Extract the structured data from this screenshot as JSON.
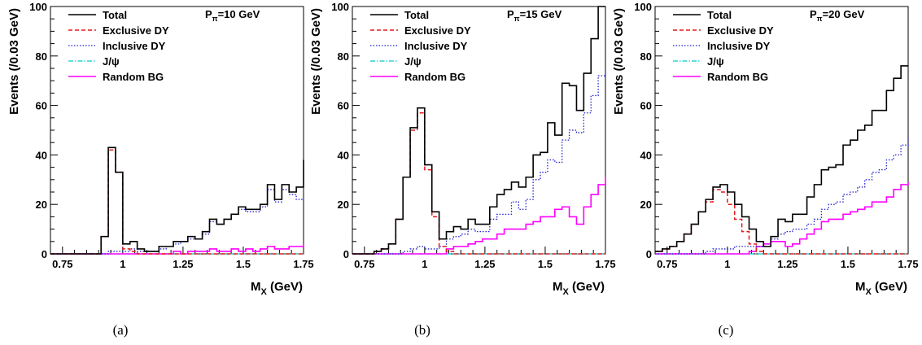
{
  "axis": {
    "ylabel": "Events (/0.03 GeV)",
    "xlabel_main": "M",
    "xlabel_sub": "X",
    "xlabel_unit": "(GeV)",
    "xticks": [
      "0.75",
      "1",
      "1.25",
      "1.5",
      "1.75"
    ],
    "yticks": [
      "0",
      "20",
      "40",
      "60",
      "80",
      "100"
    ]
  },
  "legend": {
    "entries": [
      {
        "key": "total",
        "label": "Total",
        "color": "#000000",
        "style": "solid"
      },
      {
        "key": "exclusive",
        "label": "Exclusive DY",
        "color": "#e41a1c",
        "style": "dashed"
      },
      {
        "key": "inclusive",
        "label": "Inclusive DY",
        "color": "#1f1fd0",
        "style": "dotted"
      },
      {
        "key": "jpsi",
        "label": "J/ψ",
        "color": "#00cccc",
        "style": "dashdot"
      },
      {
        "key": "random",
        "label": "Random BG",
        "color": "#ff00ff",
        "style": "solid"
      }
    ]
  },
  "chart_data": [
    {
      "type": "histogram",
      "caption": "(a)",
      "annotation": {
        "main": "P",
        "sub": "π",
        "rest": "=10 GeV"
      },
      "xlim": [
        0.7,
        1.75
      ],
      "ylim": [
        0,
        100
      ],
      "bin_width": 0.03,
      "bin_start": 0.7,
      "series": [
        {
          "key": "total",
          "values": [
            0,
            0,
            0,
            0,
            0,
            0,
            0,
            7,
            43,
            33,
            4,
            5,
            2,
            1,
            1,
            3,
            3,
            5,
            5,
            7,
            6,
            9,
            14,
            12,
            14,
            16,
            19,
            18,
            18,
            20,
            28,
            22,
            28,
            25,
            27,
            38
          ]
        },
        {
          "key": "exclusive",
          "values": [
            0,
            0,
            0,
            0,
            0,
            0,
            0,
            7,
            42,
            33,
            2,
            1,
            0,
            0,
            0,
            0,
            0,
            0,
            0,
            0,
            0,
            0,
            0,
            0,
            0,
            0,
            0,
            0,
            0,
            0,
            0,
            0,
            0,
            0,
            0,
            0
          ]
        },
        {
          "key": "inclusive",
          "values": [
            0,
            0,
            0,
            0,
            0,
            0,
            0,
            0,
            1,
            1,
            1,
            2,
            1,
            1,
            1,
            2,
            3,
            4,
            5,
            6,
            6,
            8,
            13,
            12,
            14,
            16,
            18,
            17,
            17,
            19,
            26,
            21,
            26,
            24,
            22,
            21
          ]
        },
        {
          "key": "jpsi",
          "values": [
            0,
            0,
            0,
            0,
            0,
            0,
            0,
            0,
            0,
            0,
            0,
            0,
            0,
            0,
            0,
            0,
            0,
            0,
            0,
            0,
            0,
            0,
            0,
            0,
            0,
            0,
            0,
            0,
            0,
            0,
            0,
            0,
            0,
            0,
            0,
            0
          ]
        },
        {
          "key": "random",
          "values": [
            0,
            0,
            0,
            0,
            0,
            0,
            0,
            0,
            0,
            0,
            0,
            0,
            0,
            0,
            0,
            0,
            0,
            1,
            0,
            1,
            1,
            1,
            2,
            1,
            1,
            2,
            1,
            2,
            1,
            2,
            3,
            2,
            2,
            3,
            3,
            4
          ]
        }
      ]
    },
    {
      "type": "histogram",
      "caption": "(b)",
      "annotation": {
        "main": "P",
        "sub": "π",
        "rest": "=15 GeV"
      },
      "xlim": [
        0.7,
        1.75
      ],
      "ylim": [
        0,
        100
      ],
      "bin_width": 0.03,
      "bin_start": 0.7,
      "series": [
        {
          "key": "total",
          "values": [
            0,
            0,
            0,
            1,
            2,
            4,
            14,
            31,
            51,
            59,
            36,
            17,
            6,
            9,
            11,
            10,
            14,
            12,
            12,
            19,
            24,
            26,
            29,
            27,
            31,
            40,
            41,
            53,
            48,
            69,
            68,
            58,
            73,
            87,
            100,
            100
          ]
        },
        {
          "key": "exclusive",
          "values": [
            0,
            0,
            0,
            1,
            2,
            4,
            14,
            31,
            50,
            57,
            34,
            15,
            3,
            1,
            0,
            0,
            0,
            0,
            0,
            0,
            0,
            0,
            0,
            0,
            0,
            0,
            0,
            0,
            0,
            0,
            0,
            0,
            0,
            0,
            0,
            0
          ]
        },
        {
          "key": "inclusive",
          "values": [
            0,
            0,
            0,
            0,
            0,
            0,
            0,
            1,
            2,
            3,
            2,
            2,
            3,
            6,
            7,
            8,
            10,
            9,
            9,
            14,
            16,
            16,
            21,
            18,
            22,
            30,
            33,
            38,
            37,
            46,
            50,
            49,
            57,
            64,
            72,
            74
          ]
        },
        {
          "key": "jpsi",
          "values": [
            0,
            0,
            0,
            0,
            0,
            0,
            0,
            0,
            0,
            0,
            0,
            0,
            0,
            0,
            0,
            0,
            0,
            0,
            0,
            0,
            0,
            0,
            0,
            0,
            0,
            0,
            0,
            0,
            0,
            0,
            0,
            0,
            0,
            0,
            0,
            0
          ]
        },
        {
          "key": "random",
          "values": [
            0,
            0,
            0,
            0,
            0,
            0,
            0,
            0,
            0,
            0,
            0,
            0,
            0,
            2,
            3,
            3,
            4,
            5,
            6,
            6,
            8,
            10,
            10,
            10,
            12,
            13,
            15,
            15,
            18,
            19,
            15,
            12,
            19,
            24,
            28,
            31
          ]
        }
      ]
    },
    {
      "type": "histogram",
      "caption": "(c)",
      "annotation": {
        "main": "P",
        "sub": "π",
        "rest": "=20 GeV"
      },
      "xlim": [
        0.7,
        1.75
      ],
      "ylim": [
        0,
        100
      ],
      "bin_width": 0.03,
      "bin_start": 0.7,
      "series": [
        {
          "key": "total",
          "values": [
            1,
            2,
            3,
            5,
            8,
            12,
            17,
            22,
            27,
            28,
            25,
            20,
            15,
            10,
            5,
            3,
            7,
            14,
            13,
            16,
            16,
            23,
            28,
            34,
            35,
            36,
            44,
            46,
            50,
            52,
            58,
            58,
            66,
            71,
            76,
            76
          ]
        },
        {
          "key": "exclusive",
          "values": [
            1,
            2,
            3,
            5,
            8,
            12,
            17,
            21,
            26,
            25,
            20,
            14,
            9,
            4,
            1,
            0,
            0,
            0,
            0,
            0,
            0,
            0,
            0,
            0,
            0,
            0,
            0,
            0,
            0,
            0,
            0,
            0,
            0,
            0,
            0,
            0
          ]
        },
        {
          "key": "inclusive",
          "values": [
            0,
            0,
            0,
            0,
            0,
            0,
            0,
            1,
            2,
            2,
            2,
            3,
            3,
            3,
            3,
            3,
            6,
            8,
            9,
            10,
            10,
            12,
            14,
            18,
            20,
            21,
            24,
            25,
            27,
            30,
            33,
            34,
            38,
            40,
            44,
            47
          ]
        },
        {
          "key": "jpsi",
          "values": [
            0,
            0,
            0,
            0,
            0,
            0,
            0,
            0,
            0,
            0,
            0,
            0,
            0,
            0,
            0,
            0,
            0,
            0,
            0,
            0,
            0,
            0,
            0,
            0,
            0,
            0,
            0,
            0,
            0,
            0,
            0,
            0,
            0,
            0,
            0,
            0
          ]
        },
        {
          "key": "random",
          "values": [
            0,
            0,
            0,
            0,
            0,
            0,
            0,
            0,
            0,
            0,
            0,
            0,
            0,
            1,
            3,
            4,
            5,
            5,
            3,
            4,
            6,
            8,
            10,
            13,
            14,
            14,
            16,
            17,
            18,
            19,
            21,
            21,
            23,
            26,
            28,
            29
          ]
        }
      ]
    }
  ]
}
